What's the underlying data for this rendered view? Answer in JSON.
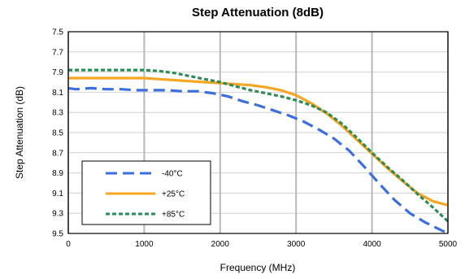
{
  "chart_data": {
    "type": "line",
    "title": "Step Attenuation (8dB)",
    "xlabel": "Frequency (MHz)",
    "ylabel": "Step Attenuation (dB)",
    "xlim": [
      0,
      5000
    ],
    "ylim": [
      7.5,
      9.5
    ],
    "y_reversed": true,
    "x_ticks": [
      "0",
      "1000",
      "2000",
      "3000",
      "4000",
      "5000"
    ],
    "y_ticks": [
      "7.5",
      "7.7",
      "7.9",
      "8.1",
      "8.3",
      "8.5",
      "8.7",
      "8.9",
      "9.1",
      "9.3",
      "9.5"
    ],
    "grid": {
      "x_major": true,
      "y_major": true
    },
    "legend_placement": "lower-left",
    "series": [
      {
        "name": "-40°C",
        "color": "#3b6fe0",
        "style": "dashed",
        "x": [
          0,
          100,
          300,
          500,
          700,
          900,
          1100,
          1300,
          1500,
          1700,
          1900,
          2100,
          2300,
          2500,
          2700,
          2900,
          3100,
          3300,
          3500,
          3700,
          3900,
          4100,
          4300,
          4500,
          4700,
          5000
        ],
        "y": [
          8.06,
          8.07,
          8.06,
          8.07,
          8.07,
          8.08,
          8.08,
          8.08,
          8.09,
          8.09,
          8.11,
          8.14,
          8.19,
          8.23,
          8.28,
          8.33,
          8.39,
          8.47,
          8.56,
          8.68,
          8.84,
          9.01,
          9.17,
          9.3,
          9.39,
          9.5
        ]
      },
      {
        "name": "+25°C",
        "color": "#f5a623",
        "style": "solid",
        "x": [
          0,
          200,
          400,
          600,
          800,
          1000,
          1200,
          1400,
          1600,
          1800,
          2000,
          2200,
          2400,
          2600,
          2800,
          3000,
          3200,
          3400,
          3600,
          3800,
          4000,
          4200,
          4400,
          4600,
          4800,
          5000
        ],
        "y": [
          7.96,
          7.96,
          7.96,
          7.96,
          7.96,
          7.96,
          7.97,
          7.98,
          7.99,
          8.0,
          8.01,
          8.02,
          8.03,
          8.05,
          8.08,
          8.13,
          8.21,
          8.31,
          8.43,
          8.57,
          8.71,
          8.85,
          8.98,
          9.1,
          9.18,
          9.22
        ]
      },
      {
        "name": "+85°C",
        "color": "#2e8b57",
        "style": "dotted",
        "x": [
          0,
          200,
          400,
          600,
          800,
          1000,
          1200,
          1400,
          1600,
          1800,
          2000,
          2200,
          2400,
          2600,
          2800,
          3000,
          3200,
          3400,
          3600,
          3800,
          4000,
          4200,
          4400,
          4600,
          4800,
          5000
        ],
        "y": [
          7.88,
          7.88,
          7.88,
          7.88,
          7.88,
          7.88,
          7.89,
          7.91,
          7.94,
          7.97,
          8.0,
          8.04,
          8.08,
          8.11,
          8.14,
          8.18,
          8.23,
          8.3,
          8.41,
          8.55,
          8.7,
          8.84,
          8.97,
          9.11,
          9.24,
          9.38
        ]
      }
    ]
  }
}
